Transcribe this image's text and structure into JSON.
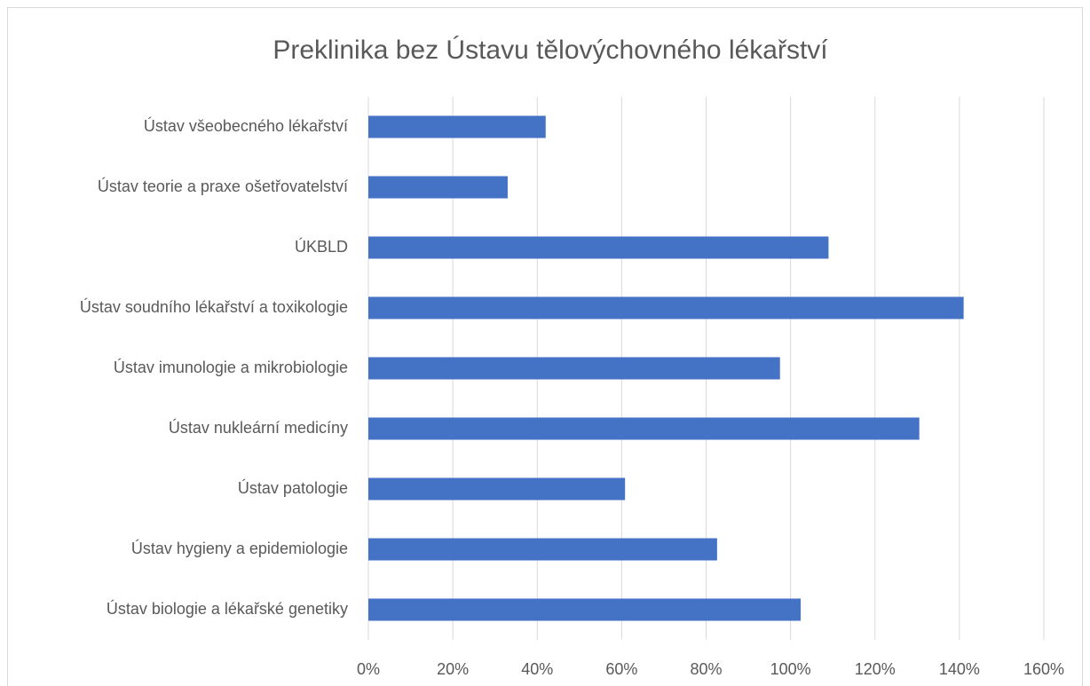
{
  "chart_data": {
    "type": "hbar",
    "title": "Preklinika bez Ústavu tělovýchovného lékařství",
    "categories": [
      "Ústav všeobecného lékařství",
      "Ústav teorie a praxe ošetřovatelství",
      "ÚKBLD",
      "Ústav soudního lékařství a toxikologie",
      "Ústav imunologie a mikrobiologie",
      "Ústav nukleární medicíny",
      "Ústav patologie",
      "Ústav hygieny a epidemiologie",
      "Ústav biologie a lékařské genetiky"
    ],
    "values": [
      42,
      33,
      109,
      141,
      97.5,
      130.5,
      60.8,
      82.6,
      102.4
    ],
    "color": "#4472c4",
    "xlim": [
      0,
      160
    ],
    "xticks": [
      {
        "value": 0,
        "label": "0%"
      },
      {
        "value": 20,
        "label": "20%"
      },
      {
        "value": 40,
        "label": "40%"
      },
      {
        "value": 60,
        "label": "60%"
      },
      {
        "value": 80,
        "label": "80%"
      },
      {
        "value": 100,
        "label": "100%"
      },
      {
        "value": 120,
        "label": "120%"
      },
      {
        "value": 140,
        "label": "140%"
      },
      {
        "value": 160,
        "label": "160%"
      }
    ],
    "grid": true
  }
}
